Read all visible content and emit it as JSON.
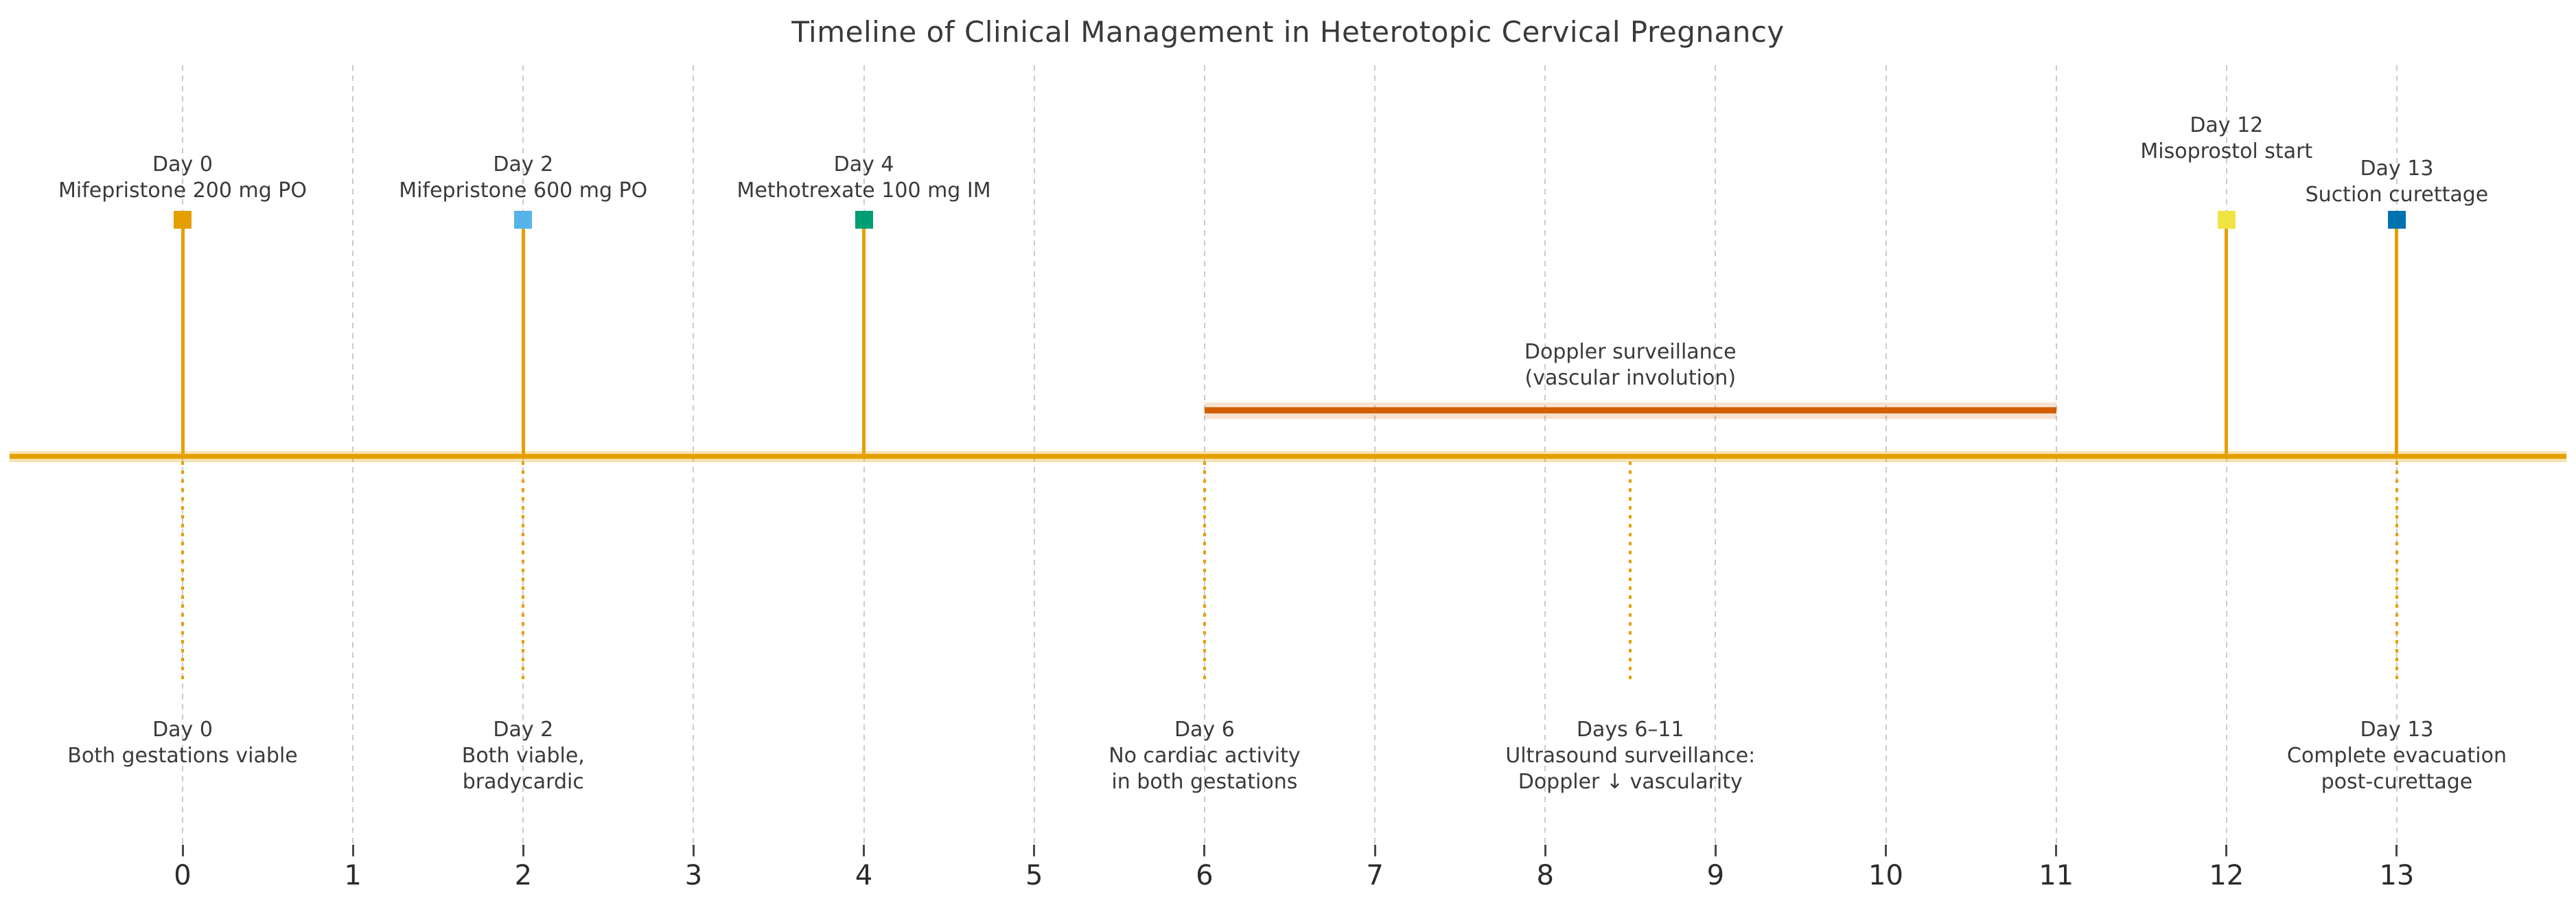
{
  "chart_data": {
    "type": "timeline",
    "title": "Timeline of Clinical Management in Heterotopic Cervical Pregnancy",
    "xlabel": "",
    "ylabel": "",
    "xlim": [
      -1,
      14
    ],
    "x_ticks": [
      "0",
      "1",
      "2",
      "3",
      "4",
      "5",
      "6",
      "7",
      "8",
      "9",
      "10",
      "11",
      "12",
      "13"
    ],
    "grid": "vertical-dashed",
    "axis_line_color": "#E69F00",
    "grid_color": "#cbcbcb",
    "text_color": "#3a3a3a",
    "events_above": [
      {
        "day": 0,
        "lines": [
          "Day 0",
          "Mifepristone 200 mg PO"
        ],
        "marker": "square",
        "marker_color": "#E69F00"
      },
      {
        "day": 2,
        "lines": [
          "Day 2",
          "Mifepristone 600 mg PO"
        ],
        "marker": "square",
        "marker_color": "#56B4E9"
      },
      {
        "day": 4,
        "lines": [
          "Day 4",
          "Methotrexate 100 mg IM"
        ],
        "marker": "square",
        "marker_color": "#009E73"
      },
      {
        "day": 12,
        "lines": [
          "Day 12",
          "Misoprostol start"
        ],
        "marker": "square",
        "marker_color": "#F0E442"
      },
      {
        "day": 13,
        "lines": [
          "Day 13",
          "Suction curettage"
        ],
        "marker": "square",
        "marker_color": "#0072B2"
      }
    ],
    "span": {
      "start_day": 6,
      "end_day": 11,
      "lines": [
        "Doppler surveillance",
        "(vascular involution)"
      ],
      "color": "#D55E00"
    },
    "annotations_below": [
      {
        "day": 0,
        "lines": [
          "Day 0",
          "Both gestations viable"
        ]
      },
      {
        "day": 2,
        "lines": [
          "Day 2",
          "Both viable,",
          "bradycardic"
        ]
      },
      {
        "day": 6,
        "lines": [
          "Day 6",
          "No cardiac activity",
          "in both gestations"
        ]
      },
      {
        "day": 8.5,
        "lines": [
          "Days 6–11",
          "Ultrasound surveillance:",
          "Doppler ↓ vascularity"
        ]
      },
      {
        "day": 13,
        "lines": [
          "Day 13",
          "Complete evacuation",
          "post-curettage"
        ]
      }
    ]
  }
}
